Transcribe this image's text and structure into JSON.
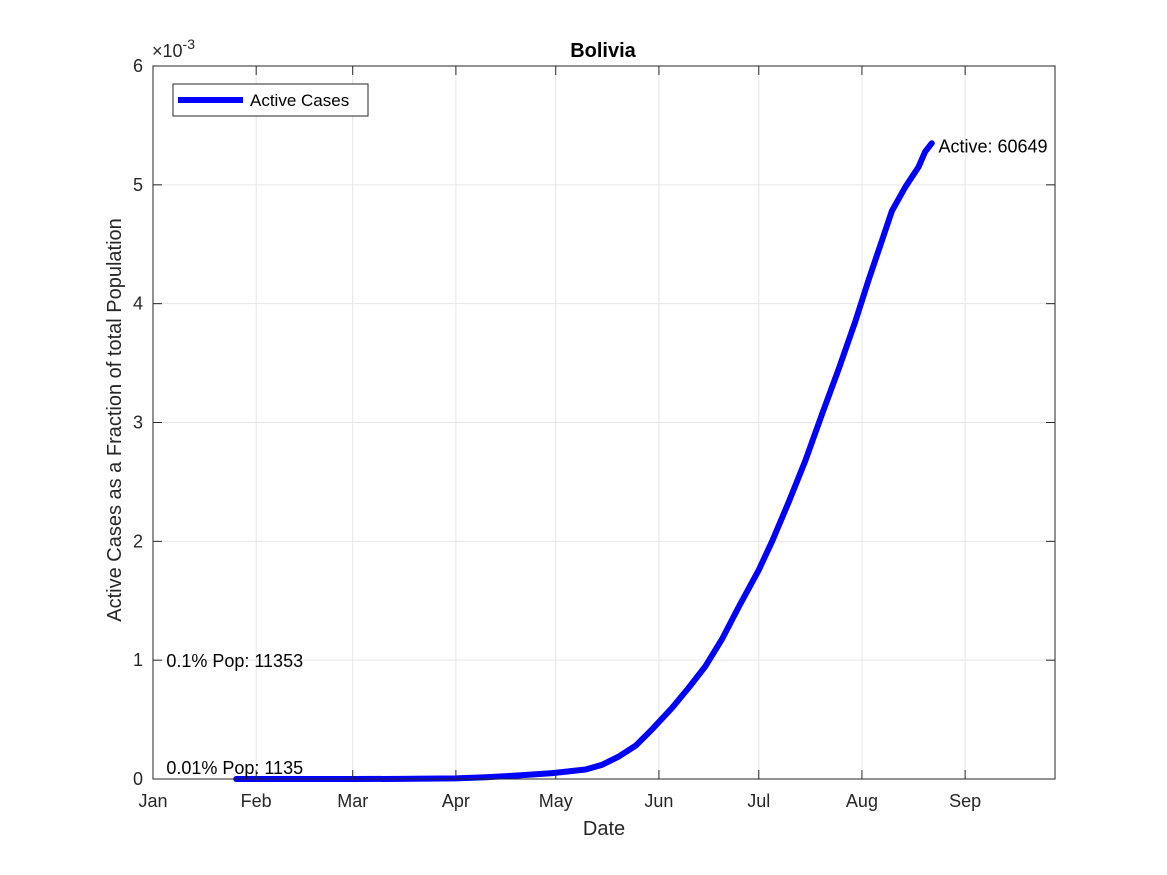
{
  "chart_data": {
    "type": "line",
    "title": "Bolivia",
    "xlabel": "Date",
    "ylabel": "Active Cases as a Fraction of total Population",
    "y_exponent_label": "×10",
    "y_exponent_power": "-3",
    "x_tick_labels": [
      "Jan",
      "Feb",
      "Mar",
      "Apr",
      "May",
      "Jun",
      "Jul",
      "Aug",
      "Sep"
    ],
    "x_tick_dates": [
      "2020-01-01",
      "2020-02-01",
      "2020-03-01",
      "2020-04-01",
      "2020-05-01",
      "2020-06-01",
      "2020-07-01",
      "2020-08-01",
      "2020-09-01"
    ],
    "xlim": [
      "2020-01-01",
      "2020-09-28"
    ],
    "y_ticks": [
      0,
      1,
      2,
      3,
      4,
      5,
      6
    ],
    "y_tick_labels": [
      "0",
      "1",
      "2",
      "3",
      "4",
      "5",
      "6"
    ],
    "ylim": [
      0,
      0.006
    ],
    "grid": true,
    "legend": {
      "placement": "top-left",
      "entries": [
        "Active Cases"
      ]
    },
    "series": [
      {
        "name": "Active Cases",
        "color": "#0000ff",
        "x": [
          "2020-01-26",
          "2020-02-15",
          "2020-03-01",
          "2020-03-15",
          "2020-04-01",
          "2020-04-10",
          "2020-04-20",
          "2020-04-30",
          "2020-05-10",
          "2020-05-15",
          "2020-05-20",
          "2020-05-25",
          "2020-05-30",
          "2020-06-05",
          "2020-06-10",
          "2020-06-15",
          "2020-06-20",
          "2020-06-25",
          "2020-07-01",
          "2020-07-05",
          "2020-07-10",
          "2020-07-15",
          "2020-07-20",
          "2020-07-25",
          "2020-07-30",
          "2020-08-03",
          "2020-08-07",
          "2020-08-10",
          "2020-08-14",
          "2020-08-18",
          "2020-08-20",
          "2020-08-22"
        ],
        "values": [
          0,
          0,
          0,
          1e-06,
          5e-06,
          1.5e-05,
          3e-05,
          5e-05,
          8e-05,
          0.00012,
          0.00019,
          0.00028,
          0.00042,
          0.0006,
          0.00077,
          0.00095,
          0.00118,
          0.00145,
          0.00176,
          0.002,
          0.00233,
          0.00268,
          0.00307,
          0.00345,
          0.00385,
          0.0042,
          0.00453,
          0.00478,
          0.00498,
          0.00515,
          0.00528,
          0.00535
        ]
      }
    ],
    "annotations": [
      {
        "text": "Active: 60649",
        "x": "2020-08-24",
        "y": 0.00533
      },
      {
        "text": "0.1% Pop: 11353",
        "x": "2020-01-05",
        "y": 0.001
      },
      {
        "text": "0.01% Pop: 1135",
        "x": "2020-01-05",
        "y": 0.0001
      }
    ]
  }
}
